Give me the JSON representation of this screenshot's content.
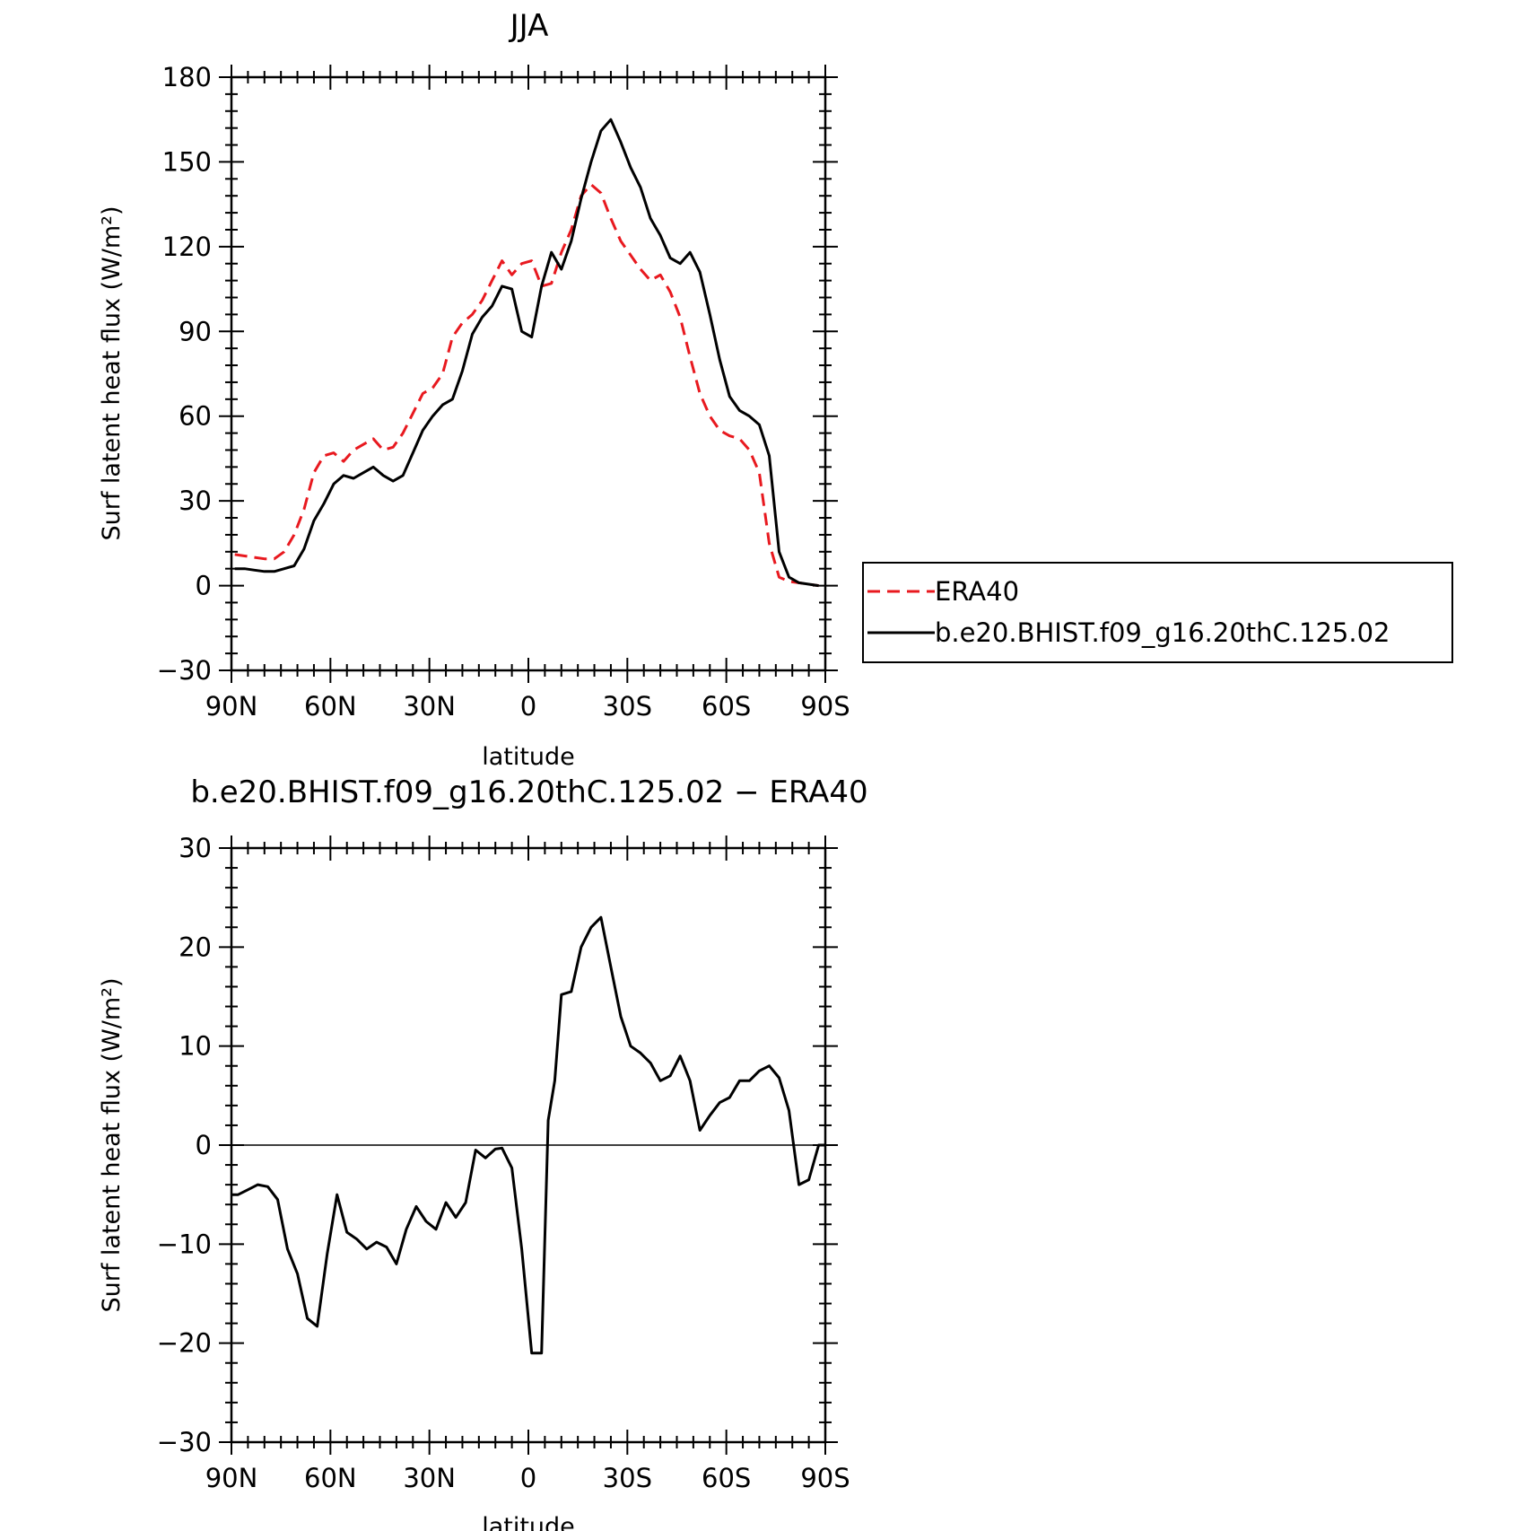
{
  "chart_data": [
    {
      "type": "line",
      "title": "JJA",
      "xlabel": "latitude",
      "ylabel": "Surf latent heat flux (W/m²)",
      "ylim": [
        -30,
        180
      ],
      "yticks": [
        -30,
        0,
        30,
        60,
        90,
        120,
        150,
        180
      ],
      "xlim": [
        90,
        -90
      ],
      "xticks": [
        90,
        60,
        30,
        0,
        -30,
        -60,
        -90
      ],
      "xtick_labels": [
        "90N",
        "60N",
        "30N",
        "0",
        "30S",
        "60S",
        "90S"
      ],
      "grid": false,
      "legend_position": "right",
      "x": [
        89,
        86,
        83,
        80,
        77,
        74,
        71,
        68,
        65,
        62,
        59,
        56,
        53,
        50,
        47,
        44,
        41,
        38,
        35,
        32,
        29,
        26,
        23,
        20,
        17,
        14,
        11,
        8,
        5,
        2,
        -1,
        -4,
        -7,
        -10,
        -13,
        -16,
        -19,
        -22,
        -25,
        -28,
        -31,
        -34,
        -37,
        -40,
        -43,
        -46,
        -49,
        -52,
        -55,
        -58,
        -61,
        -64,
        -67,
        -70,
        -73,
        -76,
        -79,
        -82,
        -85,
        -88
      ],
      "series": [
        {
          "name": "ERA40",
          "color": "#e8191f",
          "dash": "dashed",
          "values": [
            11,
            10.5,
            10,
            9.5,
            9.5,
            12,
            18,
            27,
            40,
            46,
            47,
            44,
            48,
            50,
            52,
            48,
            49,
            54,
            61,
            68,
            70,
            75,
            88,
            93,
            96,
            101,
            108,
            115,
            110,
            114,
            115,
            106,
            107,
            118,
            126,
            138,
            142,
            139,
            130,
            122,
            117,
            112,
            108,
            110,
            104,
            95,
            81,
            68,
            60,
            55,
            53,
            52,
            48,
            40,
            15,
            3,
            1.5,
            1,
            0.5,
            0
          ]
        },
        {
          "name": "b.e20.BHIST.f09_g16.20thC.125.02",
          "color": "#000000",
          "dash": "solid",
          "values": [
            6,
            6,
            5.5,
            5,
            5,
            6,
            7,
            13,
            23,
            29,
            36,
            39,
            38,
            40,
            42,
            39,
            37,
            39,
            47,
            55,
            60,
            64,
            66,
            76,
            89,
            95,
            99,
            106,
            105,
            90,
            88,
            106,
            118,
            112,
            122,
            137,
            150,
            161,
            165,
            157,
            148,
            141,
            130,
            124,
            116,
            114,
            118,
            111,
            96,
            80,
            67,
            62,
            60,
            57,
            46,
            12,
            3,
            1,
            0.5,
            0
          ]
        }
      ]
    },
    {
      "type": "line",
      "title": "b.e20.BHIST.f09_g16.20thC.125.02 − ERA40",
      "xlabel": "latitude",
      "ylabel": "Surf latent heat flux (W/m²)",
      "ylim": [
        -30,
        30
      ],
      "yticks": [
        -30,
        -20,
        -10,
        0,
        10,
        20,
        30
      ],
      "xlim": [
        90,
        -90
      ],
      "xticks": [
        90,
        60,
        30,
        0,
        -30,
        -60,
        -90
      ],
      "xtick_labels": [
        "90N",
        "60N",
        "30N",
        "0",
        "30S",
        "60S",
        "90S"
      ],
      "grid": false,
      "x": [
        90,
        88,
        85,
        82,
        79,
        76,
        73,
        70,
        67,
        64,
        61,
        58,
        55,
        52,
        49,
        46,
        43,
        40,
        37,
        34,
        31,
        28,
        25,
        22,
        19,
        16,
        13,
        10,
        8,
        5,
        2,
        -1,
        -4,
        -6,
        -8,
        -10,
        -13,
        -16,
        -19,
        -22,
        -25,
        -28,
        -31,
        -34,
        -37,
        -40,
        -43,
        -46,
        -49,
        -52,
        -55,
        -58,
        -61,
        -64,
        -67,
        -70,
        -73,
        -76,
        -79,
        -82,
        -85,
        -88,
        -90
      ],
      "series": [
        {
          "name": "",
          "color": "#000000",
          "dash": "solid",
          "values": [
            -5,
            -5,
            -4.5,
            -4,
            -4.2,
            -5.5,
            -10.5,
            -13,
            -17.5,
            -18.3,
            -11,
            -5,
            -8.8,
            -9.5,
            -10.5,
            -9.8,
            -10.3,
            -12,
            -8.5,
            -6.2,
            -7.7,
            -8.5,
            -5.8,
            -7.3,
            -5.8,
            -0.5,
            -1.3,
            -0.4,
            -0.3,
            -2.3,
            -10.5,
            -21,
            -21,
            2.5,
            6.5,
            15.2,
            15.5,
            20,
            22,
            23,
            18,
            13,
            10,
            9.3,
            8.3,
            6.5,
            7,
            9,
            6.5,
            1.5,
            3,
            4.3,
            4.8,
            6.5,
            6.5,
            7.5,
            8,
            6.8,
            3.5,
            -4,
            -3.5,
            0,
            0
          ]
        }
      ]
    }
  ]
}
